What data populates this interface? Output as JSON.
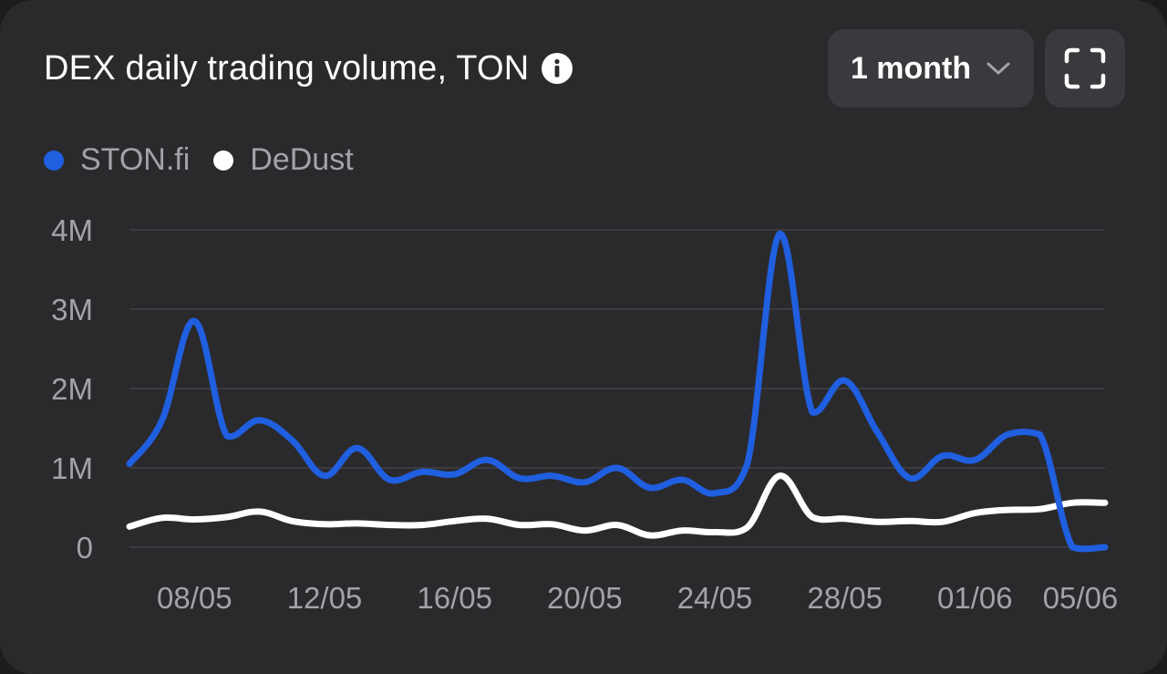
{
  "header": {
    "title": "DEX daily trading volume, TON",
    "info_icon": "info-icon",
    "range_label": "1 month",
    "fullscreen_icon": "fullscreen-icon"
  },
  "colors": {
    "background": "#2a2a2d",
    "button": "#3a3a3e",
    "ston": "#1f5fe0",
    "dedust": "#ffffff",
    "grid": "#3c3c40",
    "muted": "#a2a2a8"
  },
  "chart_data": {
    "type": "line",
    "title": "DEX daily trading volume, TON",
    "xlabel": "",
    "ylabel": "",
    "grid": true,
    "legend_position": "top-left",
    "ylim": [
      0,
      4000000
    ],
    "y_ticks": [
      {
        "value": 0,
        "label": "0"
      },
      {
        "value": 1000000,
        "label": "1M"
      },
      {
        "value": 2000000,
        "label": "2M"
      },
      {
        "value": 3000000,
        "label": "3M"
      },
      {
        "value": 4000000,
        "label": "4M"
      }
    ],
    "x_ticks": [
      {
        "index": 2,
        "label": "08/05"
      },
      {
        "index": 6,
        "label": "12/05"
      },
      {
        "index": 10,
        "label": "16/05"
      },
      {
        "index": 14,
        "label": "20/05"
      },
      {
        "index": 18,
        "label": "24/05"
      },
      {
        "index": 22,
        "label": "28/05"
      },
      {
        "index": 26,
        "label": "01/06"
      },
      {
        "index": 30,
        "label": "05/06"
      }
    ],
    "x": [
      "06/05",
      "07/05",
      "08/05",
      "09/05",
      "10/05",
      "11/05",
      "12/05",
      "13/05",
      "14/05",
      "15/05",
      "16/05",
      "17/05",
      "18/05",
      "19/05",
      "20/05",
      "21/05",
      "22/05",
      "23/05",
      "24/05",
      "25/05",
      "26/05",
      "27/05",
      "28/05",
      "29/05",
      "30/05",
      "31/05",
      "01/06",
      "02/06",
      "03/06",
      "04/06",
      "05/06"
    ],
    "series": [
      {
        "name": "STON.fi",
        "color": "#1f5fe0",
        "values": [
          1050000,
          1600000,
          2850000,
          1400000,
          1600000,
          1350000,
          900000,
          1250000,
          850000,
          950000,
          920000,
          1100000,
          870000,
          900000,
          820000,
          1000000,
          750000,
          850000,
          680000,
          1050000,
          3950000,
          1700000,
          2100000,
          1450000,
          870000,
          1150000,
          1100000,
          1420000,
          1420000,
          0,
          0
        ]
      },
      {
        "name": "DeDust",
        "color": "#ffffff",
        "values": [
          260000,
          370000,
          350000,
          380000,
          450000,
          330000,
          290000,
          300000,
          280000,
          280000,
          330000,
          360000,
          280000,
          290000,
          210000,
          280000,
          150000,
          210000,
          190000,
          250000,
          900000,
          380000,
          360000,
          320000,
          330000,
          320000,
          430000,
          470000,
          480000,
          560000,
          560000
        ]
      }
    ]
  }
}
